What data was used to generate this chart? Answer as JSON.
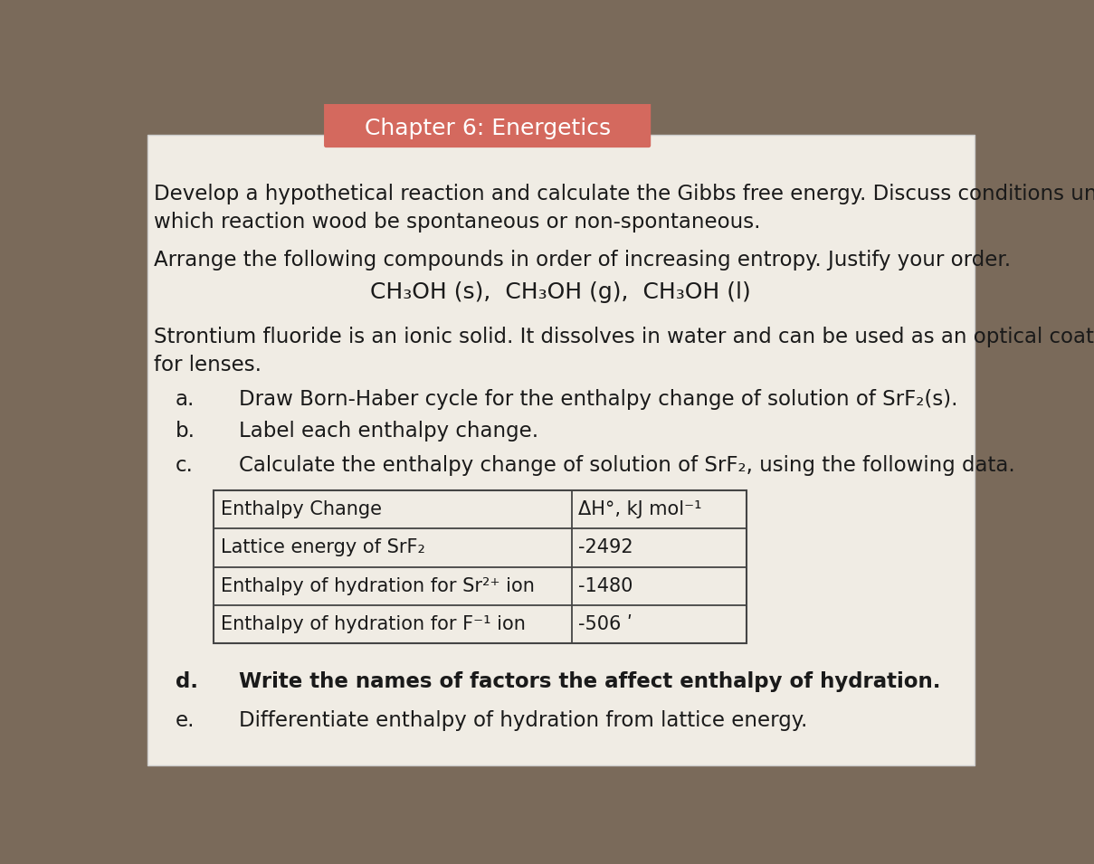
{
  "title": "Chapter 6: Energetics",
  "title_bg": "#d4695e",
  "title_color": "#ffffff",
  "outer_bg": "#7a6a5a",
  "page_bg": "#f0ece4",
  "para1_line1": "Develop a hypothetical reaction and calculate the Gibbs free energy. Discuss conditions under",
  "para1_line2": "which reaction wood be spontaneous or non-spontaneous.",
  "para2": "Arrange the following compounds in order of increasing entropy. Justify your order.",
  "para2_center": "CH₃OH (s),  CH₃OH (g),  CH₃OH (l)",
  "para3_line1": "Strontium fluoride is an ionic solid. It dissolves in water and can be used as an optical coating",
  "para3_line2": "for lenses.",
  "item_a_label": "a.",
  "item_a_text": "Draw Born-Haber cycle for the enthalpy change of solution of SrF₂(s).",
  "item_b_label": "b.",
  "item_b_text": "Label each enthalpy change.",
  "item_c_label": "c.",
  "item_c_text": "Calculate the enthalpy change of solution of SrF₂, using the following data.",
  "item_d_label": "d.",
  "item_d_text": "Write the names of factors the affect enthalpy of hydration.",
  "item_e_label": "e.",
  "item_e_text": "Differentiate enthalpy of hydration from lattice energy.",
  "table_headers": [
    "Enthalpy Change",
    "ΔH°, kJ mol⁻¹"
  ],
  "table_rows": [
    [
      "Lattice energy of SrF₂",
      "-2492"
    ],
    [
      "Enthalpy of hydration for Sr²⁺ ion",
      "-1480"
    ],
    [
      "Enthalpy of hydration for F⁻¹ ion",
      "-506 ʹ"
    ]
  ],
  "text_color": "#1a1a1a",
  "table_line_color": "#444444",
  "table_bg": "#f0ece4"
}
